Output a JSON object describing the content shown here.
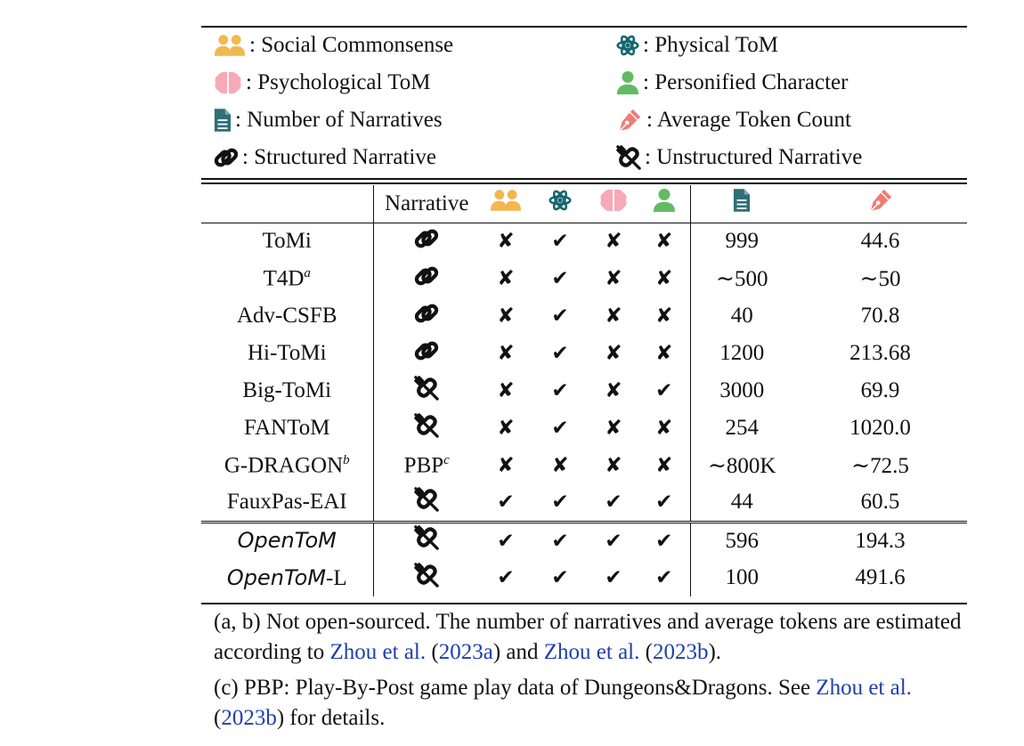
{
  "legend": {
    "social_commonsense": ": Social Commonsense",
    "physical_tom": ": Physical ToM",
    "psychological_tom": ": Psychological ToM",
    "personified_character": ": Personified Character",
    "number_of_narratives": ": Number of Narratives",
    "average_token_count": ": Average Token Count",
    "structured_narrative": ": Structured Narrative",
    "unstructured_narrative": ": Unstructured Narrative"
  },
  "table": {
    "narrative_header": "Narrative",
    "rows": [
      {
        "name": "ToMi",
        "sup": "",
        "narrative": "structured",
        "narr_text": "",
        "narr_sup": "",
        "social": "✘",
        "physical": "✔",
        "psych": "✘",
        "person": "✘",
        "num": "999",
        "tokens": "44.6"
      },
      {
        "name": "T4D",
        "sup": "a",
        "narrative": "structured",
        "narr_text": "",
        "narr_sup": "",
        "social": "✘",
        "physical": "✔",
        "psych": "✘",
        "person": "✘",
        "num": "∼500",
        "tokens": "∼50"
      },
      {
        "name": "Adv-CSFB",
        "sup": "",
        "narrative": "structured",
        "narr_text": "",
        "narr_sup": "",
        "social": "✘",
        "physical": "✔",
        "psych": "✘",
        "person": "✘",
        "num": "40",
        "tokens": "70.8"
      },
      {
        "name": "Hi-ToMi",
        "sup": "",
        "narrative": "structured",
        "narr_text": "",
        "narr_sup": "",
        "social": "✘",
        "physical": "✔",
        "psych": "✘",
        "person": "✘",
        "num": "1200",
        "tokens": "213.68"
      },
      {
        "name": "Big-ToMi",
        "sup": "",
        "narrative": "unstructured",
        "narr_text": "",
        "narr_sup": "",
        "social": "✘",
        "physical": "✔",
        "psych": "✘",
        "person": "✔",
        "num": "3000",
        "tokens": "69.9"
      },
      {
        "name": "FANToM",
        "sup": "",
        "narrative": "unstructured",
        "narr_text": "",
        "narr_sup": "",
        "social": "✘",
        "physical": "✔",
        "psych": "✘",
        "person": "✘",
        "num": "254",
        "tokens": "1020.0"
      },
      {
        "name": "G-DRAGON",
        "sup": "b",
        "narrative": "text",
        "narr_text": "PBP",
        "narr_sup": "c",
        "social": "✘",
        "physical": "✘",
        "psych": "✘",
        "person": "✘",
        "num": "∼800K",
        "tokens": "∼72.5"
      },
      {
        "name": "FauxPas-EAI",
        "sup": "",
        "narrative": "unstructured",
        "narr_text": "",
        "narr_sup": "",
        "social": "✔",
        "physical": "✔",
        "psych": "✔",
        "person": "✔",
        "num": "44",
        "tokens": "60.5"
      }
    ],
    "opentom_rows": [
      {
        "name": "OpenToM",
        "suffix": "",
        "narrative": "unstructured",
        "social": "✔",
        "physical": "✔",
        "psych": "✔",
        "person": "✔",
        "num": "596",
        "tokens": "194.3"
      },
      {
        "name": "OpenToM",
        "suffix": "-L",
        "narrative": "unstructured",
        "social": "✔",
        "physical": "✔",
        "psych": "✔",
        "person": "✔",
        "num": "100",
        "tokens": "491.6"
      }
    ]
  },
  "notes": {
    "note1_a": "(a, b) Not open-sourced. The number of narratives and average tokens are estimated according to ",
    "note1_cite1_name": "Zhou et al.",
    "note1_cite1_year": "2023a",
    "note1_and": " and ",
    "note1_cite2_name": "Zhou et al.",
    "note1_cite2_year": "2023b",
    "note1_end": ").",
    "note2_a": "(c) PBP: Play-By-Post game play data of Dungeons&Dragons. See ",
    "note2_cite_name": "Zhou et al.",
    "note2_cite_year": "2023b",
    "note2_end": ") for details."
  },
  "colors": {
    "social": "#f3b74f",
    "physical": "#15676e",
    "psych": "#f7a9b6",
    "person": "#62bb63",
    "doc": "#2f6f78",
    "pen": "#f07b74",
    "link": "#1f3fae"
  }
}
